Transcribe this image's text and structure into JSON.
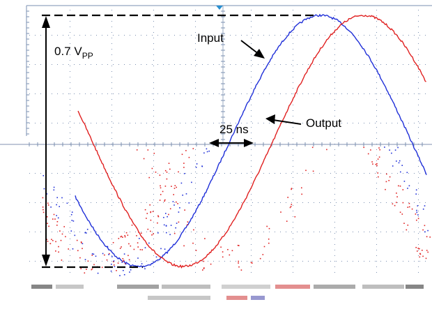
{
  "annotations": {
    "amplitude_main": "0.7 V",
    "amplitude_sub": "PP",
    "input_label": "Input",
    "output_label": "Output",
    "delay_label": "25 ns"
  },
  "chart_data": {
    "type": "line",
    "series": [
      {
        "name": "Input",
        "color": "#1f2fd8"
      },
      {
        "name": "Output",
        "color": "#e02020"
      }
    ],
    "delay": "25 ns",
    "amplitude": "0.7 VPP",
    "grid": true
  },
  "colors": {
    "input": "#1f2fd8",
    "output": "#e02020",
    "grid": "#7a8fb0",
    "marker": "#2a8fd0"
  }
}
